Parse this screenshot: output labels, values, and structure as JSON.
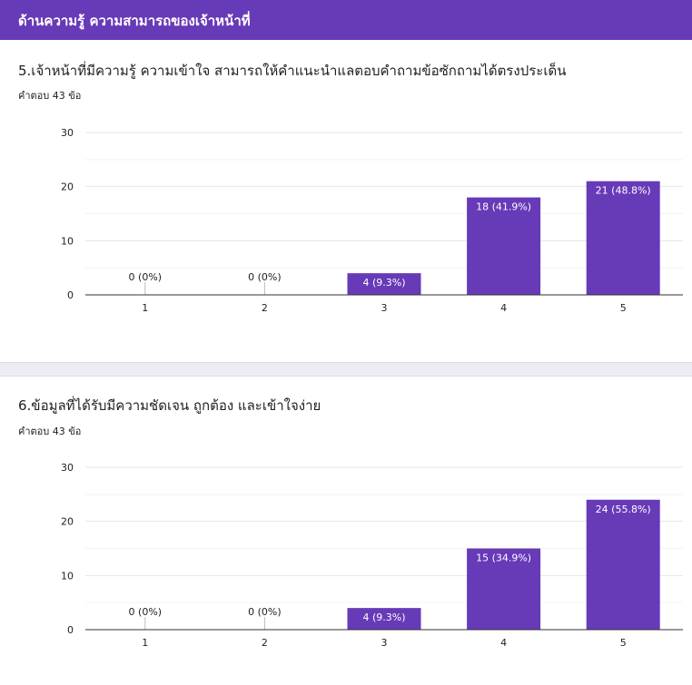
{
  "section": {
    "title": "ด้านความรู้ ความสามารถของเจ้าหน้าที่"
  },
  "colors": {
    "accent": "#673ab7",
    "bar": "#673ab7",
    "page_background": "#eeebf5"
  },
  "questions": [
    {
      "title": "5.เจ้าหน้าที่มีความรู้ ความเข้าใจ สามารถให้คำแนะนำแลตอบคำถามข้อซักถามได้ตรงประเด็น",
      "response_count": "คำตอบ 43 ข้อ"
    },
    {
      "title": "6.ข้อมูลที่ได้รับมีความชัดเจน ถูกต้อง และเข้าใจง่าย",
      "response_count": "คำตอบ 43 ข้อ"
    }
  ],
  "chart_data": [
    {
      "type": "bar",
      "categories": [
        "1",
        "2",
        "3",
        "4",
        "5"
      ],
      "values": [
        0,
        0,
        4,
        18,
        21
      ],
      "data_labels": [
        "0 (0%)",
        "0 (0%)",
        "4 (9.3%)",
        "18 (41.9%)",
        "21 (48.8%)"
      ],
      "y_ticks": [
        "0",
        "10",
        "20",
        "30"
      ],
      "ylim": [
        0,
        30
      ],
      "grid": true
    },
    {
      "type": "bar",
      "categories": [
        "1",
        "2",
        "3",
        "4",
        "5"
      ],
      "values": [
        0,
        0,
        4,
        15,
        24
      ],
      "data_labels": [
        "0 (0%)",
        "0 (0%)",
        "4 (9.3%)",
        "15 (34.9%)",
        "24 (55.8%)"
      ],
      "y_ticks": [
        "0",
        "10",
        "20",
        "30"
      ],
      "ylim": [
        0,
        30
      ],
      "grid": true
    }
  ]
}
